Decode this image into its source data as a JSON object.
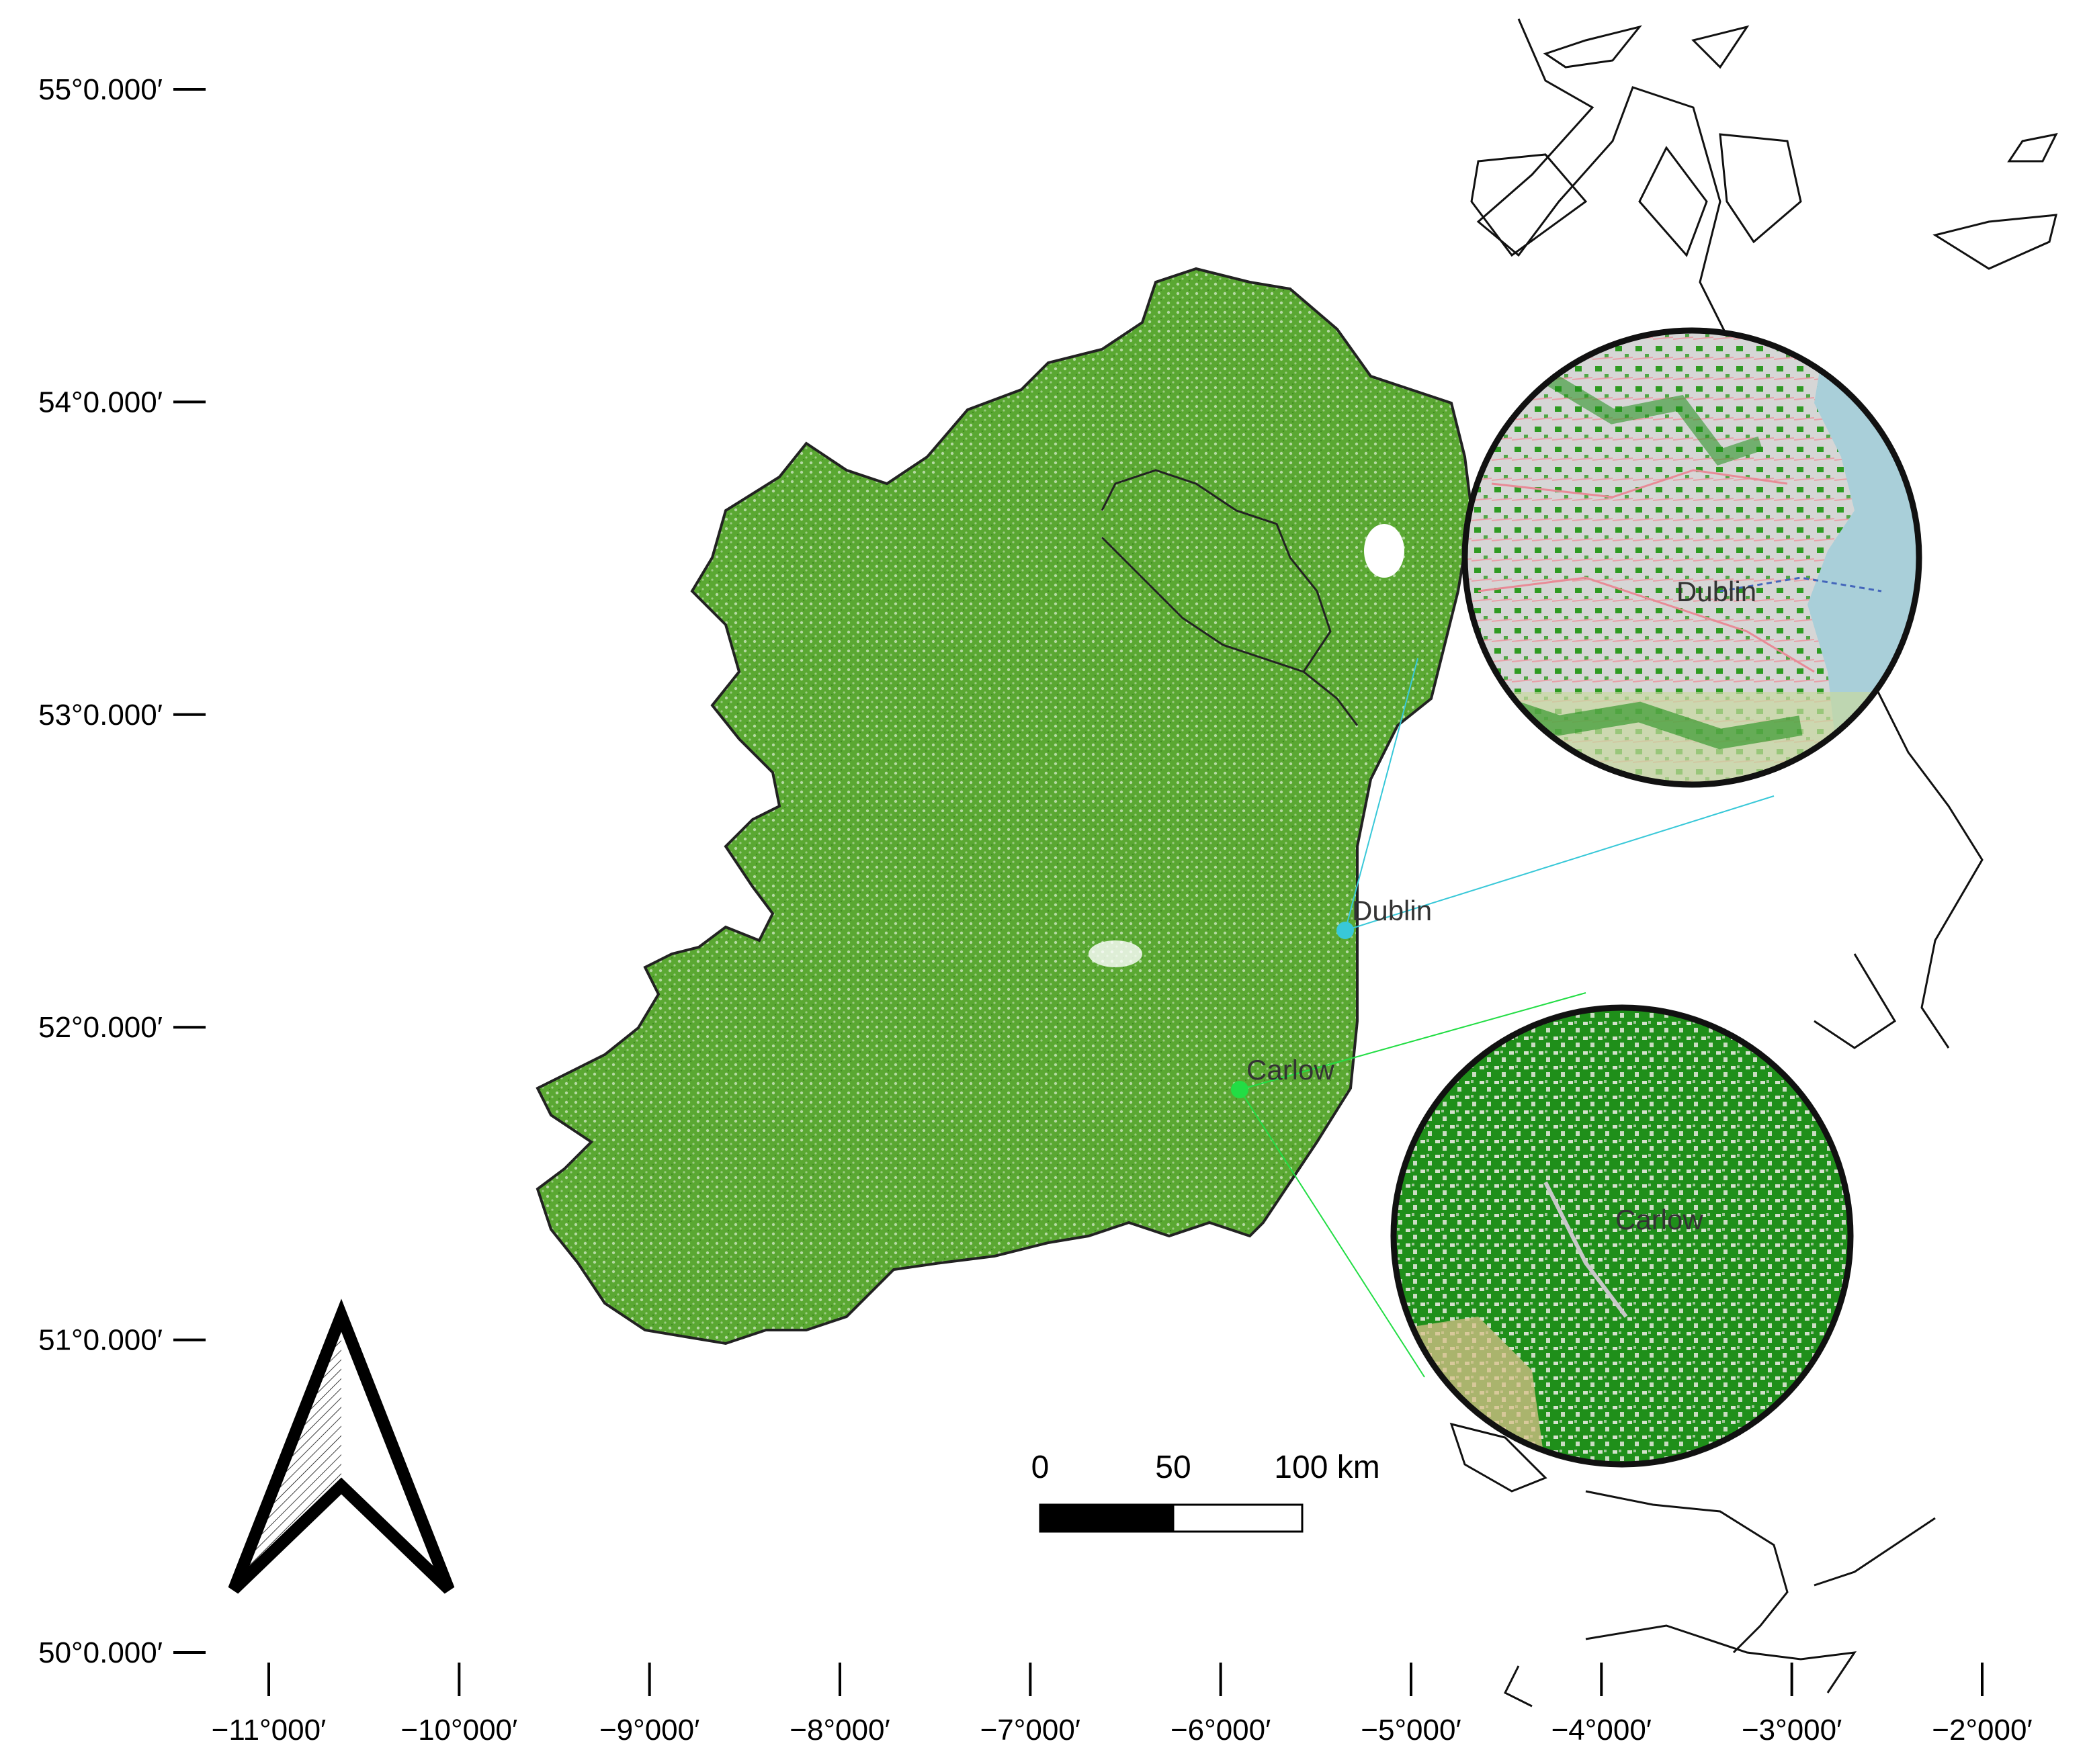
{
  "map": {
    "latitude_ticks": [
      {
        "label": "55°0.000′",
        "value": 55
      },
      {
        "label": "54°0.000′",
        "value": 54
      },
      {
        "label": "53°0.000′",
        "value": 53
      },
      {
        "label": "52°0.000′",
        "value": 52
      },
      {
        "label": "51°0.000′",
        "value": 51
      },
      {
        "label": "50°0.000′",
        "value": 50
      }
    ],
    "longitude_ticks": [
      {
        "label": "−11°000′",
        "value": -11
      },
      {
        "label": "−10°000′",
        "value": -10
      },
      {
        "label": "−9°000′",
        "value": -9
      },
      {
        "label": "−8°000′",
        "value": -8
      },
      {
        "label": "−7°000′",
        "value": -7
      },
      {
        "label": "−6°000′",
        "value": -6
      },
      {
        "label": "−5°000′",
        "value": -5
      },
      {
        "label": "−4°000′",
        "value": -4
      },
      {
        "label": "−3°000′",
        "value": -3
      },
      {
        "label": "−2°000′",
        "value": -2
      }
    ],
    "cities": [
      {
        "name": "Dublin",
        "color": "#38c8d8"
      },
      {
        "name": "Carlow",
        "color": "#22dd44"
      }
    ],
    "scale_bar": {
      "labels": [
        "0",
        "50",
        "100 km"
      ]
    },
    "insets": {
      "dublin": {
        "label": "Dublin"
      },
      "carlow": {
        "label": "Carlow"
      }
    },
    "colors": {
      "vegetation": "#4a9a28",
      "coastline": "#111111",
      "inset_green": "#1f8f1a",
      "sea": "#a9cfd9"
    },
    "north_arrow": "north-arrow-icon"
  }
}
